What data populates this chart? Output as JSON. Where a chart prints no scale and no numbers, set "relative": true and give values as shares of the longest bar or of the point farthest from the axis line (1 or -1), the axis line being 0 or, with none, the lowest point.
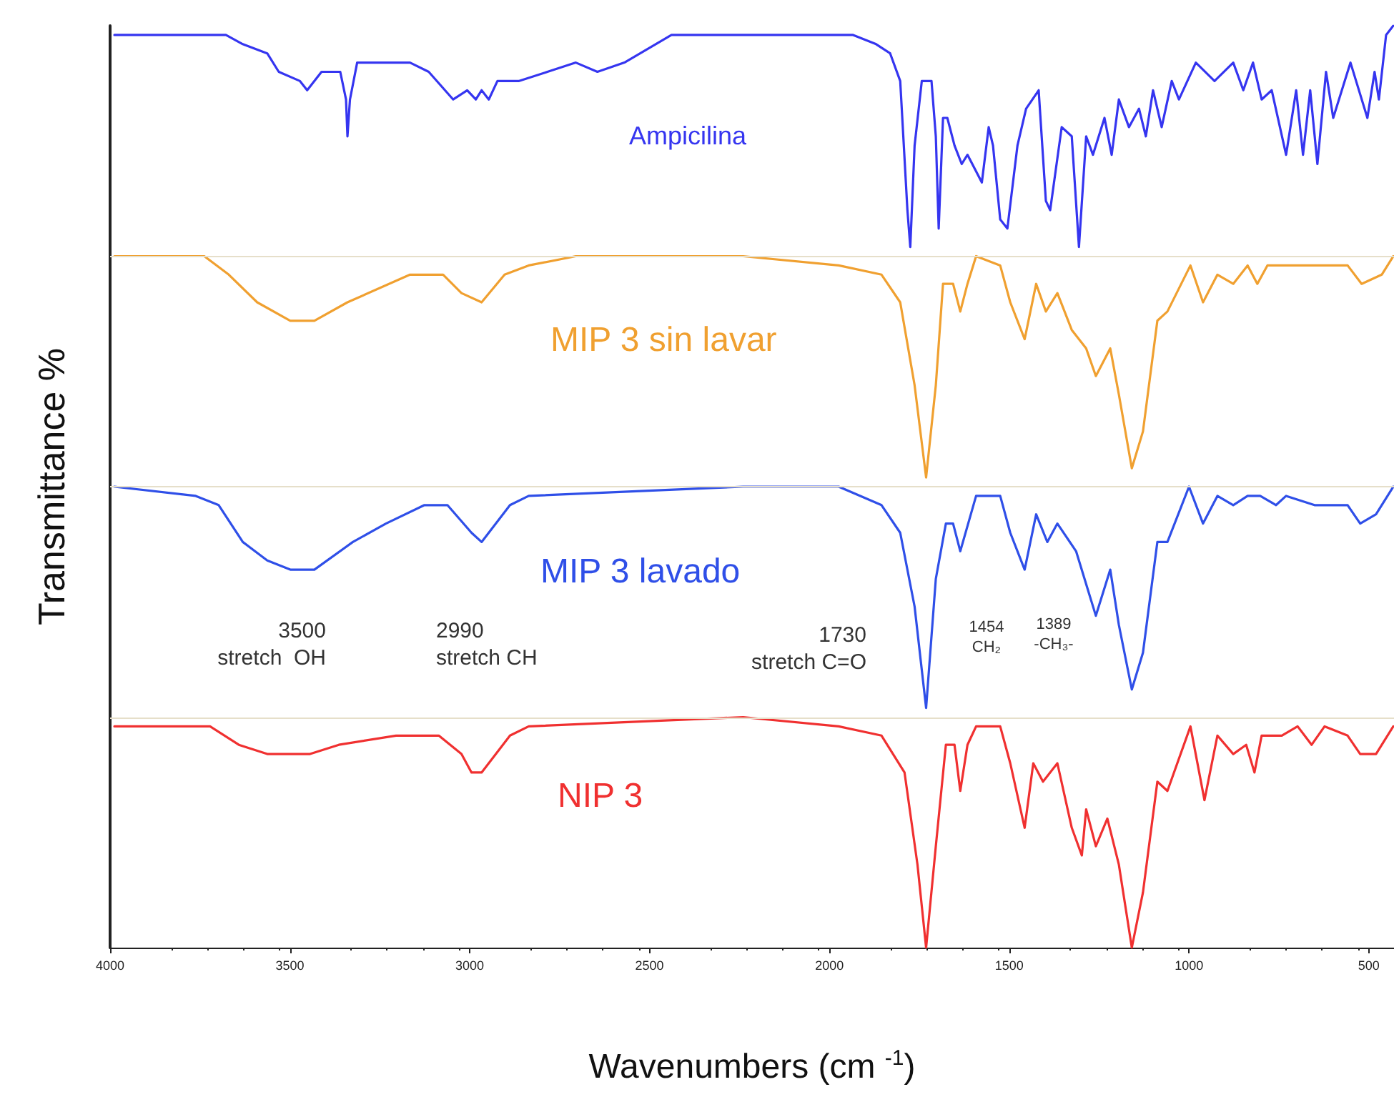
{
  "chart_data": {
    "type": "line",
    "relative": true,
    "xlabel": "Wavenumbers (cm $^{-1}$)",
    "ylabel": "Transmittance %",
    "xlim": [
      4000,
      430
    ],
    "xticks": [
      4000,
      3500,
      3000,
      2500,
      2000,
      1500,
      1000,
      500
    ],
    "tick_labels": "x",
    "legend": false,
    "grid": false,
    "marker": "none",
    "line_style": "solid",
    "annotations": [
      "3500\nstretch  OH",
      "2990\nstretch CH",
      "1730\nstretch C=O",
      "1454\nCH₂",
      "1389\n-CH₃-"
    ],
    "ref_lines": [
      {
        "axis": "y",
        "value": 0.75,
        "color": "#e6dfca"
      },
      {
        "axis": "y",
        "value": 0.5,
        "color": "#e6dfca"
      },
      {
        "axis": "y",
        "value": 0.25,
        "color": "#e6dfca"
      }
    ],
    "series": [
      {
        "name": "Ampicilina",
        "color": "#3535f0",
        "x": [
          3988,
          3801,
          3762,
          3678,
          3631,
          3563,
          3531,
          3472,
          3452,
          3412,
          3360,
          3344,
          3340,
          3333,
          3313,
          3285,
          3166,
          3114,
          3046,
          3007,
          2983,
          2967,
          2947,
          2923,
          2864,
          2784,
          2705,
          2645,
          2570,
          2439,
          2371,
          2240,
          2161,
          2081,
          1934,
          1870,
          1831,
          1803,
          1783,
          1775,
          1763,
          1743,
          1716,
          1704,
          1696,
          1684,
          1672,
          1652,
          1632,
          1616,
          1576,
          1557,
          1545,
          1525,
          1505,
          1477,
          1453,
          1418,
          1398,
          1386,
          1354,
          1326,
          1306,
          1286,
          1267,
          1235,
          1215,
          1195,
          1167,
          1139,
          1120,
          1100,
          1076,
          1048,
          1028,
          981,
          929,
          877,
          849,
          822,
          798,
          770,
          730,
          702,
          683,
          663,
          643,
          619,
          599,
          551,
          504,
          484,
          472,
          452,
          432
        ],
        "values": [
          0.99,
          0.99,
          0.99,
          0.99,
          0.98,
          0.97,
          0.95,
          0.94,
          0.93,
          0.95,
          0.95,
          0.92,
          0.88,
          0.92,
          0.96,
          0.96,
          0.96,
          0.95,
          0.92,
          0.93,
          0.92,
          0.93,
          0.92,
          0.94,
          0.94,
          0.95,
          0.96,
          0.95,
          0.96,
          0.99,
          0.99,
          0.99,
          0.99,
          0.99,
          0.99,
          0.98,
          0.97,
          0.94,
          0.8,
          0.76,
          0.87,
          0.94,
          0.94,
          0.88,
          0.78,
          0.9,
          0.9,
          0.87,
          0.85,
          0.86,
          0.83,
          0.89,
          0.87,
          0.79,
          0.78,
          0.87,
          0.91,
          0.93,
          0.81,
          0.8,
          0.89,
          0.88,
          0.76,
          0.88,
          0.86,
          0.9,
          0.86,
          0.92,
          0.89,
          0.91,
          0.88,
          0.93,
          0.89,
          0.94,
          0.92,
          0.96,
          0.94,
          0.96,
          0.93,
          0.96,
          0.92,
          0.93,
          0.86,
          0.93,
          0.86,
          0.93,
          0.85,
          0.95,
          0.9,
          0.96,
          0.9,
          0.95,
          0.92,
          0.99,
          1.0
        ]
      },
      {
        "name": "MIP 3 sin lavar",
        "color": "#f0a030",
        "x": [
          3988,
          3738,
          3670,
          3591,
          3499,
          3432,
          3340,
          3166,
          3074,
          3023,
          2967,
          2903,
          2836,
          2705,
          2240,
          1974,
          1855,
          1803,
          1763,
          1731,
          1704,
          1684,
          1656,
          1636,
          1616,
          1592,
          1525,
          1497,
          1457,
          1425,
          1398,
          1366,
          1326,
          1286,
          1259,
          1219,
          1195,
          1159,
          1128,
          1088,
          1060,
          996,
          961,
          921,
          877,
          837,
          810,
          782,
          702,
          651,
          559,
          520,
          464,
          432
        ],
        "values": [
          0.75,
          0.75,
          0.73,
          0.7,
          0.68,
          0.68,
          0.7,
          0.73,
          0.73,
          0.71,
          0.7,
          0.73,
          0.74,
          0.75,
          0.75,
          0.74,
          0.73,
          0.7,
          0.61,
          0.51,
          0.61,
          0.72,
          0.72,
          0.69,
          0.72,
          0.75,
          0.74,
          0.7,
          0.66,
          0.72,
          0.69,
          0.71,
          0.67,
          0.65,
          0.62,
          0.65,
          0.6,
          0.52,
          0.56,
          0.68,
          0.69,
          0.74,
          0.7,
          0.73,
          0.72,
          0.74,
          0.72,
          0.74,
          0.74,
          0.74,
          0.74,
          0.72,
          0.73,
          0.75
        ]
      },
      {
        "name": "MIP 3 lavado",
        "color": "#2f4fe8",
        "x": [
          3988,
          3762,
          3698,
          3631,
          3563,
          3499,
          3432,
          3325,
          3233,
          3126,
          3062,
          2995,
          2967,
          2888,
          2836,
          2240,
          1974,
          1855,
          1803,
          1763,
          1731,
          1704,
          1676,
          1656,
          1636,
          1592,
          1525,
          1497,
          1457,
          1425,
          1394,
          1366,
          1314,
          1259,
          1219,
          1195,
          1159,
          1128,
          1088,
          1060,
          1000,
          961,
          921,
          877,
          837,
          802,
          758,
          730,
          651,
          559,
          524,
          480,
          432
        ],
        "values": [
          0.5,
          0.49,
          0.48,
          0.44,
          0.42,
          0.41,
          0.41,
          0.44,
          0.46,
          0.48,
          0.48,
          0.45,
          0.44,
          0.48,
          0.49,
          0.5,
          0.5,
          0.48,
          0.45,
          0.37,
          0.26,
          0.4,
          0.46,
          0.46,
          0.43,
          0.49,
          0.49,
          0.45,
          0.41,
          0.47,
          0.44,
          0.46,
          0.43,
          0.36,
          0.41,
          0.35,
          0.28,
          0.32,
          0.44,
          0.44,
          0.5,
          0.46,
          0.49,
          0.48,
          0.49,
          0.49,
          0.48,
          0.49,
          0.48,
          0.48,
          0.46,
          0.47,
          0.5
        ]
      },
      {
        "name": "NIP 3",
        "color": "#f03030",
        "x": [
          3988,
          3722,
          3642,
          3563,
          3444,
          3364,
          3205,
          3086,
          3023,
          2995,
          2967,
          2888,
          2836,
          2240,
          1974,
          1855,
          1791,
          1755,
          1731,
          1704,
          1676,
          1652,
          1636,
          1616,
          1592,
          1525,
          1497,
          1457,
          1433,
          1406,
          1366,
          1326,
          1298,
          1286,
          1259,
          1227,
          1195,
          1159,
          1128,
          1088,
          1060,
          996,
          957,
          921,
          877,
          841,
          818,
          798,
          742,
          698,
          659,
          623,
          559,
          524,
          480,
          432
        ],
        "values": [
          0.24,
          0.24,
          0.22,
          0.21,
          0.21,
          0.22,
          0.23,
          0.23,
          0.21,
          0.19,
          0.19,
          0.23,
          0.24,
          0.25,
          0.24,
          0.23,
          0.19,
          0.09,
          0.0,
          0.11,
          0.22,
          0.22,
          0.17,
          0.22,
          0.24,
          0.24,
          0.2,
          0.13,
          0.2,
          0.18,
          0.2,
          0.13,
          0.1,
          0.15,
          0.11,
          0.14,
          0.09,
          0.0,
          0.06,
          0.18,
          0.17,
          0.24,
          0.16,
          0.23,
          0.21,
          0.22,
          0.19,
          0.23,
          0.23,
          0.24,
          0.22,
          0.24,
          0.23,
          0.21,
          0.21,
          0.24
        ]
      }
    ]
  }
}
